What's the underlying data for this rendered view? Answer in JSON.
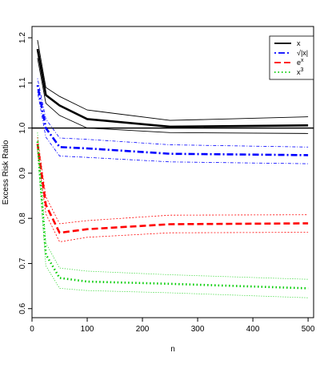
{
  "chart_data": {
    "type": "line",
    "title": "",
    "xlabel": "n",
    "ylabel": "Excess Risk Ratio",
    "xlim": [
      0,
      510
    ],
    "ylim": [
      0.58,
      1.225
    ],
    "x_ticks": [
      0,
      100,
      200,
      300,
      400,
      500
    ],
    "y_ticks": [
      0.6,
      0.7,
      0.8,
      0.9,
      1.0,
      1.1,
      1.2
    ],
    "x_tick_labels": [
      "0",
      "100",
      "200",
      "300",
      "400",
      "500"
    ],
    "y_tick_labels": [
      "0.6",
      "0.7",
      "0.8",
      "0.9",
      "1.0",
      "1.1",
      "1.2"
    ],
    "reference_line": 1.0,
    "grid": false,
    "legend_position": "top-right",
    "x": [
      10,
      25,
      50,
      100,
      250,
      500
    ],
    "series": [
      {
        "name": "x",
        "color": "#000000",
        "line_style": "solid",
        "values": [
          1.175,
          1.073,
          1.05,
          1.02,
          1.003,
          1.006
        ],
        "lower": [
          1.155,
          1.055,
          1.028,
          1.0,
          0.99,
          0.988
        ],
        "upper": [
          1.195,
          1.09,
          1.07,
          1.04,
          1.017,
          1.025
        ]
      },
      {
        "name": "√|x|",
        "color": "#0000ff",
        "line_style": "dotdash",
        "values": [
          1.095,
          1.0,
          0.958,
          0.955,
          0.943,
          0.94
        ],
        "lower": [
          1.08,
          0.98,
          0.938,
          0.935,
          0.925,
          0.921
        ],
        "upper": [
          1.11,
          1.02,
          0.978,
          0.975,
          0.963,
          0.958
        ]
      },
      {
        "name": "e^x",
        "color": "#ff0000",
        "line_style": "dashed",
        "values": [
          0.965,
          0.83,
          0.768,
          0.776,
          0.787,
          0.789
        ],
        "lower": [
          0.95,
          0.81,
          0.748,
          0.758,
          0.768,
          0.769
        ],
        "upper": [
          0.98,
          0.848,
          0.788,
          0.795,
          0.807,
          0.808
        ]
      },
      {
        "name": "x^3",
        "color": "#00cc00",
        "line_style": "dotted",
        "values": [
          0.97,
          0.72,
          0.668,
          0.66,
          0.655,
          0.645
        ],
        "lower": [
          0.95,
          0.695,
          0.645,
          0.64,
          0.635,
          0.624
        ],
        "upper": [
          0.99,
          0.745,
          0.69,
          0.683,
          0.675,
          0.665
        ]
      }
    ]
  }
}
